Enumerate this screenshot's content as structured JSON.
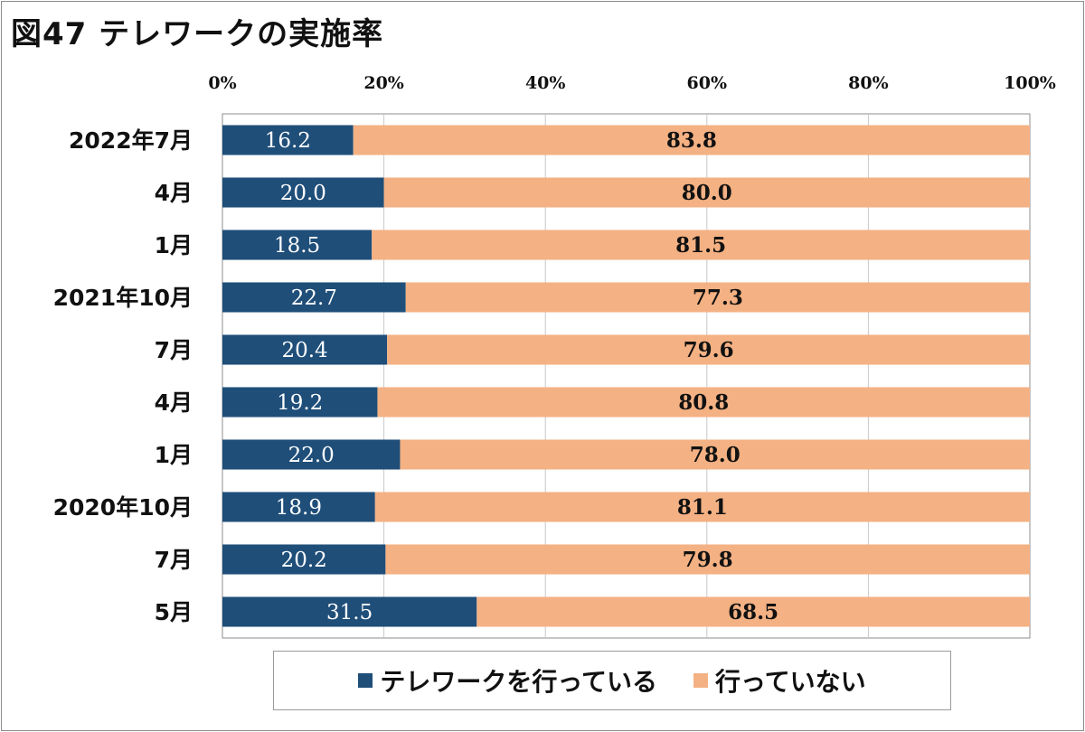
{
  "title": "図47 テレワークの実施率",
  "colors": {
    "telework": "#1f4e79",
    "no_telework": "#f4b183",
    "grid": "#c8c8c8"
  },
  "chart_data": {
    "type": "bar",
    "orientation": "horizontal",
    "stacked": true,
    "title": "図47 テレワークの実施率",
    "categories": [
      "2022年7月",
      "4月",
      "1月",
      "2021年10月",
      "7月",
      "4月",
      "1月",
      "2020年10月",
      "7月",
      "5月"
    ],
    "series": [
      {
        "name": "テレワークを行っている",
        "values": [
          16.2,
          20.0,
          18.5,
          22.7,
          20.4,
          19.2,
          22.0,
          18.9,
          20.2,
          31.5
        ]
      },
      {
        "name": "行っていない",
        "values": [
          83.8,
          80.0,
          81.5,
          77.3,
          79.6,
          80.8,
          78.0,
          81.1,
          79.8,
          68.5
        ]
      }
    ],
    "value_labels": [
      [
        "16.2",
        "20.0",
        "18.5",
        "22.7",
        "20.4",
        "19.2",
        "22.0",
        "18.9",
        "20.2",
        "31.5"
      ],
      [
        "83.8",
        "80.0",
        "81.5",
        "77.3",
        "79.6",
        "80.8",
        "78.0",
        "81.1",
        "79.8",
        "68.5"
      ]
    ],
    "xlim": [
      0,
      100
    ],
    "xticks": [
      0,
      20,
      40,
      60,
      80,
      100
    ],
    "xtick_labels": [
      "0%",
      "20%",
      "40%",
      "60%",
      "80%",
      "100%"
    ],
    "xaxis_position": "top",
    "grid": true,
    "legend_position": "bottom"
  }
}
